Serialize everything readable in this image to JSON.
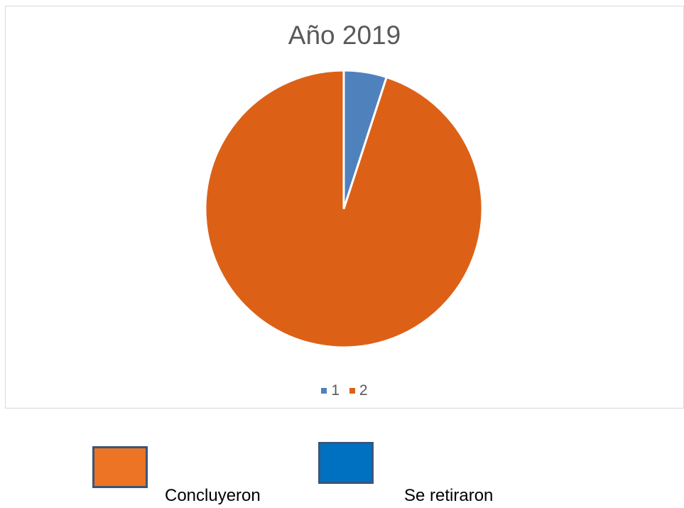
{
  "chart_data": {
    "type": "pie",
    "title": "Año 2019",
    "categories": [
      "1",
      "2"
    ],
    "values": [
      5,
      95
    ],
    "colors": [
      "#4f81bd",
      "#dc6117"
    ],
    "legend_position": "bottom"
  },
  "outer_legend": {
    "items": [
      {
        "label": "Concluyeron",
        "color": "#ec7424"
      },
      {
        "label": "Se retiraron",
        "color": "#0070c0"
      }
    ]
  }
}
